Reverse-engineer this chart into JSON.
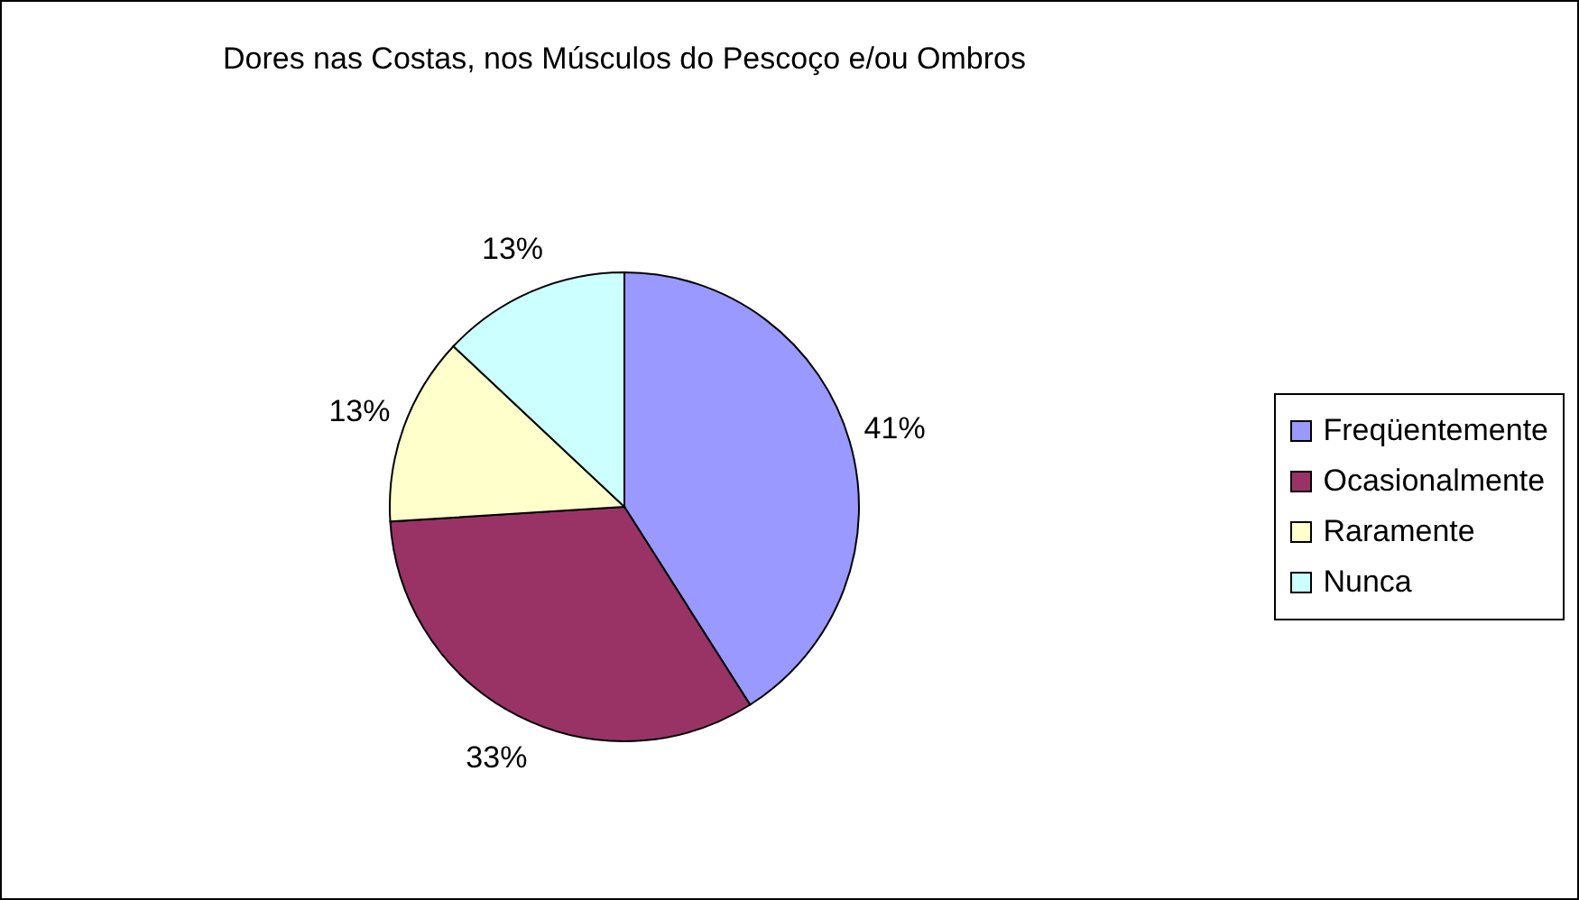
{
  "chart_data": {
    "type": "pie",
    "title": "Dores nas Costas, nos Músculos do Pescoço e/ou Ombros",
    "categories": [
      "Freqüentemente",
      "Ocasionalmente",
      "Raramente",
      "Nunca"
    ],
    "values": [
      41,
      33,
      13,
      13
    ],
    "colors": [
      "#9999ff",
      "#993366",
      "#ffffcc",
      "#ccffff"
    ],
    "value_labels": [
      "41%",
      "33%",
      "13%",
      "13%"
    ],
    "legend": "right"
  }
}
